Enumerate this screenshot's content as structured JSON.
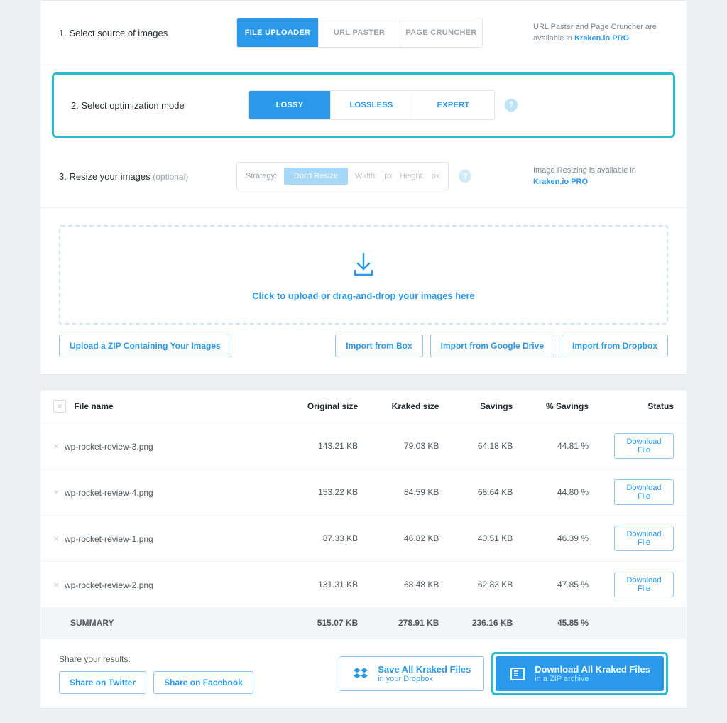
{
  "step1": {
    "label": "1. Select source of images",
    "tabs": [
      "FILE UPLOADER",
      "URL PASTER",
      "PAGE CRUNCHER"
    ],
    "active_index": 0,
    "note_prefix": "URL Paster and Page Cruncher are available in ",
    "note_link": "Kraken.io PRO"
  },
  "step2": {
    "label": "2. Select optimization mode",
    "tabs": [
      "LOSSY",
      "LOSSLESS",
      "EXPERT"
    ],
    "active_index": 0
  },
  "step3": {
    "label_main": "3. Resize your images ",
    "label_optional": "(optional)",
    "strategy_label": "Strategy:",
    "strategy_value": "Don't Resize",
    "width_label": "Width:",
    "width_unit": "px",
    "height_label": "Height:",
    "height_unit": "px",
    "note_prefix": "Image Resizing is available in ",
    "note_link": "Kraken.io PRO"
  },
  "upload": {
    "text": "Click to upload or drag-and-drop your images here",
    "zip_btn": "Upload a ZIP Containing Your Images",
    "import_box": "Import from Box",
    "import_gdrive": "Import from Google Drive",
    "import_dropbox": "Import from Dropbox"
  },
  "table": {
    "headers": [
      "File name",
      "Original size",
      "Kraked size",
      "Savings",
      "% Savings",
      "Status"
    ],
    "download_label": "Download File",
    "rows": [
      {
        "name": "wp-rocket-review-3.png",
        "original": "143.21 KB",
        "kraked": "79.03 KB",
        "savings": "64.18 KB",
        "pct": "44.81 %"
      },
      {
        "name": "wp-rocket-review-4.png",
        "original": "153.22 KB",
        "kraked": "84.59 KB",
        "savings": "68.64 KB",
        "pct": "44.80 %"
      },
      {
        "name": "wp-rocket-review-1.png",
        "original": "87.33 KB",
        "kraked": "46.82 KB",
        "savings": "40.51 KB",
        "pct": "46.39 %"
      },
      {
        "name": "wp-rocket-review-2.png",
        "original": "131.31 KB",
        "kraked": "68.48 KB",
        "savings": "62.83 KB",
        "pct": "47.85 %"
      }
    ],
    "summary": {
      "label": "SUMMARY",
      "original": "515.07 KB",
      "kraked": "278.91 KB",
      "savings": "236.16 KB",
      "pct": "45.85 %"
    }
  },
  "footer": {
    "share_label": "Share your results:",
    "share_twitter": "Share on Twitter",
    "share_facebook": "Share on Facebook",
    "save_dropbox_title": "Save All Kraked Files",
    "save_dropbox_sub": "in your Dropbox",
    "download_title": "Download All Kraked Files",
    "download_sub": "in a ZIP archive"
  }
}
